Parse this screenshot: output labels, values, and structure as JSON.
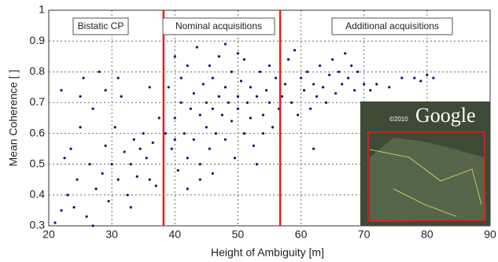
{
  "chart_data": {
    "type": "scatter",
    "x_label": "Height of Ambiguity [m]",
    "y_label": "Mean Coherence [ ]",
    "color": "#14146e",
    "x": [
      21,
      22,
      22.5,
      23,
      23.5,
      24,
      24.5,
      25,
      25.5,
      26,
      26.5,
      27,
      27.5,
      28,
      28.5,
      29,
      29.5,
      30,
      30.5,
      31,
      31.5,
      32,
      32.5,
      33,
      33.5,
      34,
      34.5,
      35,
      35.5,
      36,
      36.5,
      37,
      37.5,
      25,
      27,
      31,
      36,
      29,
      33,
      22,
      38.5,
      39,
      39.5,
      40,
      40,
      40.5,
      41,
      41,
      41.5,
      42,
      42,
      42.5,
      43,
      43,
      43.5,
      44,
      44,
      44.5,
      45,
      45,
      45.5,
      45.5,
      46,
      46,
      46.5,
      47,
      47,
      47.5,
      48,
      48,
      48.5,
      49,
      49,
      49.5,
      50,
      50,
      50.5,
      51,
      51,
      51.5,
      52,
      52,
      52.5,
      53,
      53.5,
      54,
      54,
      54.5,
      55,
      55.5,
      56,
      56.5,
      44,
      46,
      42,
      48,
      50,
      53,
      40,
      55,
      57,
      57.5,
      58,
      58.5,
      59,
      59.5,
      60,
      60.5,
      61,
      61.5,
      62,
      62.5,
      63,
      63.5,
      64,
      64.5,
      65,
      65.5,
      66,
      66.5,
      67,
      67.5,
      68,
      68.5,
      69,
      70,
      71,
      72,
      74,
      76,
      78,
      79,
      80,
      81,
      62
    ],
    "values": [
      0.31,
      0.35,
      0.52,
      0.4,
      0.55,
      0.36,
      0.45,
      0.62,
      0.78,
      0.33,
      0.5,
      0.68,
      0.42,
      0.8,
      0.47,
      0.56,
      0.38,
      0.5,
      0.62,
      0.45,
      0.72,
      0.54,
      0.4,
      0.5,
      0.58,
      0.46,
      0.55,
      0.6,
      0.52,
      0.45,
      0.57,
      0.43,
      0.65,
      0.72,
      0.3,
      0.78,
      0.75,
      0.74,
      0.36,
      0.74,
      0.6,
      0.75,
      0.55,
      0.85,
      0.65,
      0.48,
      0.7,
      0.78,
      0.6,
      0.52,
      0.82,
      0.68,
      0.73,
      0.58,
      0.88,
      0.66,
      0.5,
      0.76,
      0.7,
      0.62,
      0.82,
      0.55,
      0.68,
      0.78,
      0.6,
      0.72,
      0.85,
      0.66,
      0.58,
      0.75,
      0.7,
      0.64,
      0.8,
      0.52,
      0.72,
      0.68,
      0.77,
      0.6,
      0.84,
      0.7,
      0.65,
      0.75,
      0.56,
      0.72,
      0.8,
      0.66,
      0.6,
      0.74,
      0.7,
      0.62,
      0.78,
      0.68,
      0.45,
      0.47,
      0.42,
      0.89,
      0.86,
      0.5,
      0.58,
      0.82,
      0.72,
      0.76,
      0.84,
      0.7,
      0.87,
      0.66,
      0.78,
      0.74,
      0.8,
      0.68,
      0.76,
      0.72,
      0.82,
      0.75,
      0.7,
      0.79,
      0.84,
      0.73,
      0.8,
      0.76,
      0.86,
      0.78,
      0.82,
      0.74,
      0.8,
      0.76,
      0.74,
      0.76,
      0.75,
      0.78,
      0.78,
      0.77,
      0.79,
      0.78,
      0.55
    ],
    "xlim": [
      20,
      90
    ],
    "xticks": [
      20,
      30,
      40,
      50,
      60,
      70,
      80,
      90
    ],
    "ylim": [
      0.3,
      1
    ],
    "yticks": [
      0.3,
      0.4,
      0.5,
      0.6,
      0.7,
      0.8,
      0.9,
      1
    ],
    "grid": true,
    "vlines": [
      38.2,
      56.7
    ],
    "vline_color": "#e02020",
    "annotations": [
      "Bistatic CP",
      "Nominal acquisitions",
      "Additional acquisitions"
    ],
    "inset": {
      "copyright": "©2010",
      "brand": "Google"
    }
  }
}
